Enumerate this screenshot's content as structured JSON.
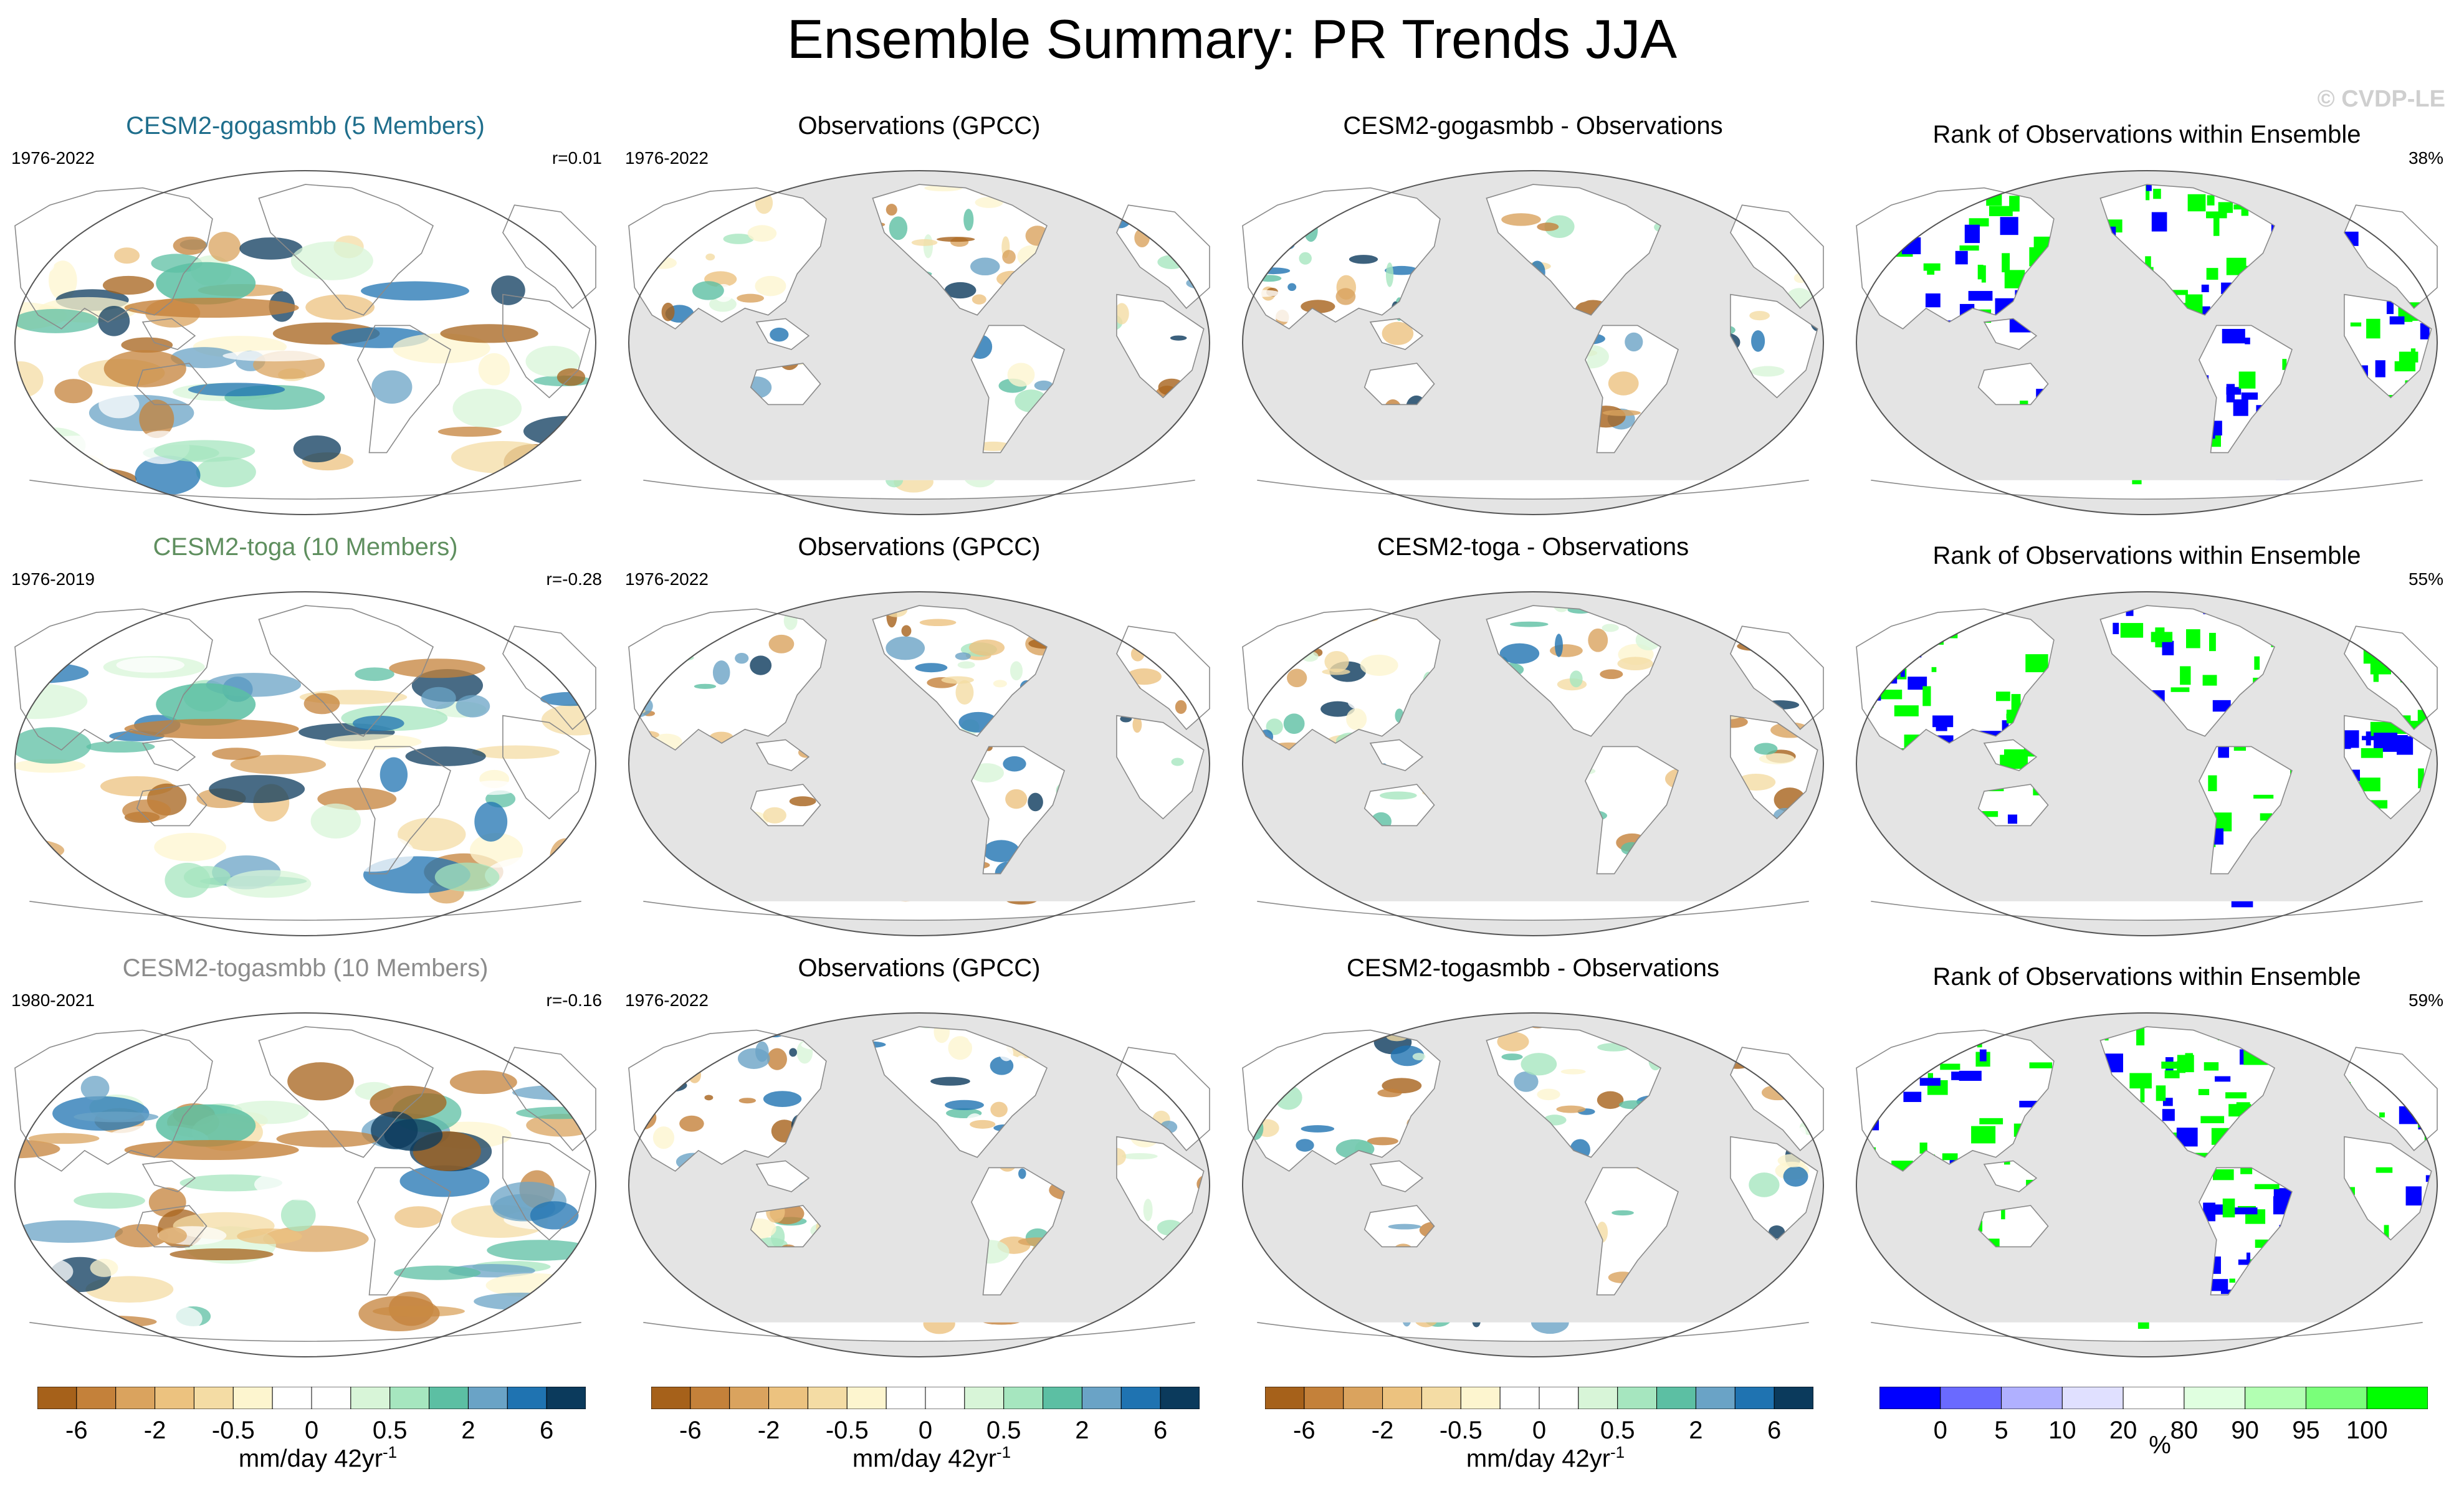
{
  "title": "Ensemble Summary: PR Trends JJA",
  "watermark": "© CVDP-LE",
  "rows": [
    {
      "model": {
        "title": "CESM2-gogasmbb (5 Members)",
        "title_color": "#1f6e8c",
        "years": "1976-2022",
        "stat": "r=0.01"
      },
      "obs": {
        "title": "Observations (GPCC)",
        "years": "1976-2022"
      },
      "diff": {
        "title": "CESM2-gogasmbb - Observations"
      },
      "rank": {
        "title": "Rank of Observations within Ensemble",
        "stat": "38%"
      }
    },
    {
      "model": {
        "title": "CESM2-toga (10 Members)",
        "title_color": "#5f8f5f",
        "years": "1976-2019",
        "stat": "r=-0.28"
      },
      "obs": {
        "title": "Observations (GPCC)",
        "years": "1976-2022"
      },
      "diff": {
        "title": "CESM2-toga - Observations"
      },
      "rank": {
        "title": "Rank of Observations within Ensemble",
        "stat": "55%"
      }
    },
    {
      "model": {
        "title": "CESM2-togasmbb (10 Members)",
        "title_color": "#8c8c8c",
        "years": "1980-2021",
        "stat": "r=-0.16"
      },
      "obs": {
        "title": "Observations (GPCC)",
        "years": "1976-2022"
      },
      "diff": {
        "title": "CESM2-togasmbb - Observations"
      },
      "rank": {
        "title": "Rank of Observations within Ensemble",
        "stat": "59%"
      }
    }
  ],
  "colorbars": {
    "trend": {
      "colors": [
        "#a6611a",
        "#c4813a",
        "#daa35e",
        "#ecc27f",
        "#f4dca4",
        "#fdf5cf",
        "#ffffff",
        "#ffffff",
        "#d8f5d8",
        "#a6e6bf",
        "#5cbfa3",
        "#6aa3c6",
        "#1f73b1",
        "#0b3a5c"
      ],
      "ticks": [
        "-6",
        "-2",
        "-0.5",
        "0",
        "0.5",
        "2",
        "6"
      ],
      "label": "mm/day 42yr",
      "label_sup": "-1"
    },
    "rank": {
      "colors": [
        "#0000ff",
        "#6a6aff",
        "#b0b0ff",
        "#e0e0ff",
        "#ffffff",
        "#e0ffe0",
        "#b2ffb2",
        "#7aff7a",
        "#00ff00"
      ],
      "ticks": [
        "0",
        "5",
        "10",
        "20",
        "80",
        "90",
        "95",
        "100"
      ],
      "label": "%"
    }
  },
  "map_colors": {
    "land_gray": "#e4e4e4",
    "coast": "#8a8a8a",
    "rank_blue": "#0000ff",
    "rank_green": "#00ff00"
  }
}
